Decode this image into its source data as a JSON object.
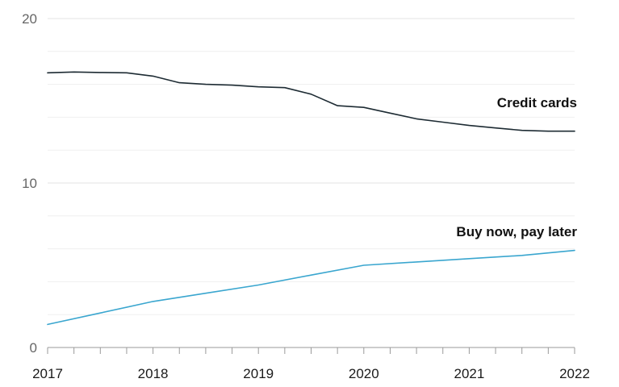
{
  "chart_data": {
    "type": "line",
    "title": "",
    "xlabel": "",
    "ylabel": "",
    "x_ticks": [
      "2017",
      "2018",
      "2019",
      "2020",
      "2021",
      "2022"
    ],
    "y_ticks": [
      "0",
      "10",
      "20"
    ],
    "xlim": [
      2017,
      2022
    ],
    "ylim": [
      0,
      20
    ],
    "grid": true,
    "series": [
      {
        "name": "Credit cards",
        "color": "#1d2b33",
        "x": [
          2017.0,
          2017.25,
          2017.5,
          2017.75,
          2018.0,
          2018.25,
          2018.5,
          2018.75,
          2019.0,
          2019.25,
          2019.5,
          2019.75,
          2020.0,
          2020.25,
          2020.5,
          2020.75,
          2021.0,
          2021.25,
          2021.5,
          2021.75,
          2022.0
        ],
        "values": [
          16.7,
          16.75,
          16.72,
          16.7,
          16.5,
          16.1,
          16.0,
          15.95,
          15.85,
          15.8,
          15.4,
          14.7,
          14.6,
          14.25,
          13.9,
          13.7,
          13.5,
          13.35,
          13.2,
          13.15,
          13.15
        ]
      },
      {
        "name": "Buy now, pay later",
        "color": "#3aa6cf",
        "x": [
          2017.0,
          2017.5,
          2018.0,
          2018.5,
          2019.0,
          2019.5,
          2020.0,
          2020.5,
          2021.0,
          2021.5,
          2022.0
        ],
        "values": [
          1.4,
          2.1,
          2.8,
          3.3,
          3.8,
          4.4,
          5.0,
          5.2,
          5.4,
          5.6,
          5.9
        ]
      }
    ]
  }
}
